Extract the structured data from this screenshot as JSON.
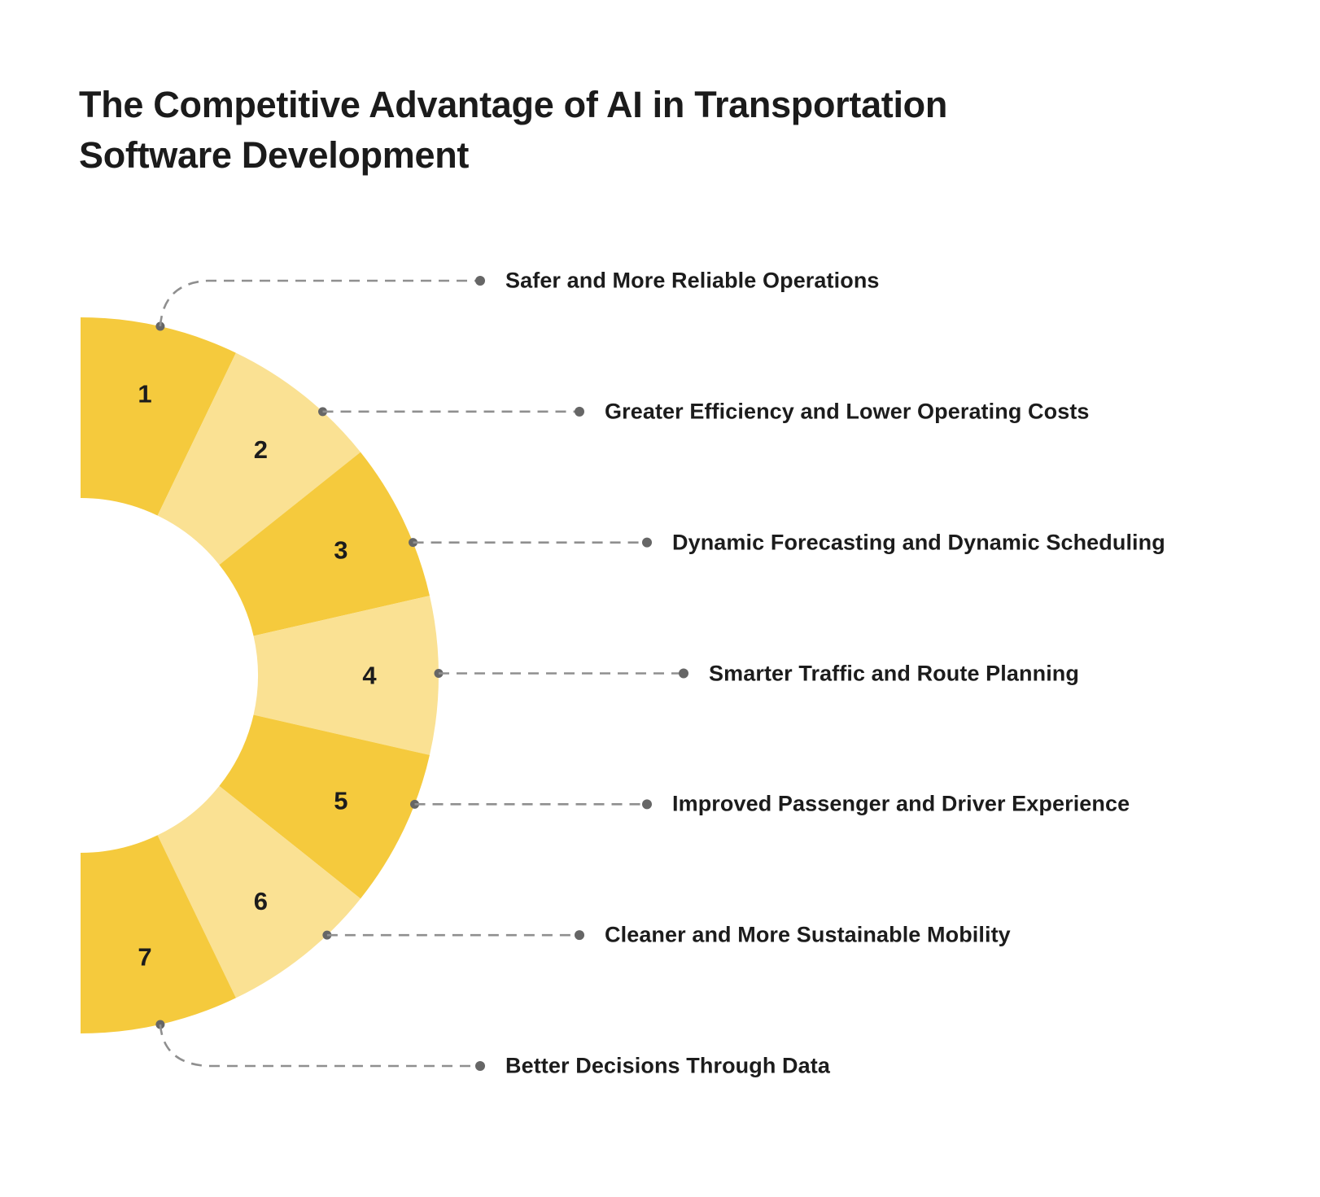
{
  "header": {
    "title_lines": [
      "The Competitive Advantage of AI in Transportation",
      "Software Development"
    ]
  },
  "chart_data": {
    "type": "pie",
    "variant": "half-donut",
    "title": "The Competitive Advantage of AI in Transportation Software Development",
    "values": [
      1,
      1,
      1,
      1,
      1,
      1,
      1
    ],
    "legend_position": "right",
    "grid": false,
    "segments": [
      {
        "number": "1",
        "label": "Safer and More Reliable Operations",
        "shade": "dark"
      },
      {
        "number": "2",
        "label": "Greater Efficiency and Lower Operating Costs",
        "shade": "light"
      },
      {
        "number": "3",
        "label": "Dynamic Forecasting and Dynamic Scheduling",
        "shade": "dark"
      },
      {
        "number": "4",
        "label": "Smarter Traffic and Route Planning",
        "shade": "light"
      },
      {
        "number": "5",
        "label": "Improved Passenger and Driver Experience",
        "shade": "dark"
      },
      {
        "number": "6",
        "label": "Cleaner and More Sustainable Mobility",
        "shade": "light"
      },
      {
        "number": "7",
        "label": "Better Decisions Through Data",
        "shade": "dark"
      }
    ],
    "colors": {
      "segment_dark": "#F5CA3D",
      "segment_light": "#FAE193",
      "connector_line": "#8F8F8F",
      "connector_dot": "#666666",
      "number_text": "#1c1c1c",
      "label_text": "#1c1c1c",
      "title_text": "#1b1b1b"
    }
  }
}
